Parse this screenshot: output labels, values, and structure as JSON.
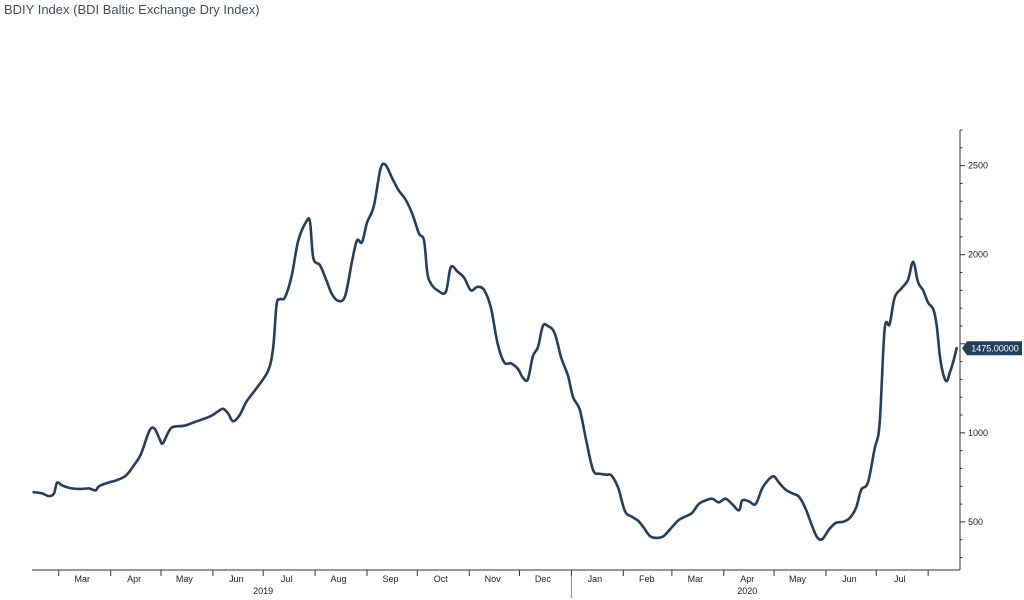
{
  "title": "BDIY Index (BDI Baltic Exchange Dry Index)",
  "colors": {
    "line": "#243f5e",
    "axis": "#333333",
    "label_bg": "#243f5e"
  },
  "chart_data": {
    "type": "line",
    "title": "BDIY Index (BDI Baltic Exchange Dry Index)",
    "xlabel": "",
    "ylabel": "",
    "xlim": [
      "2019-02-13",
      "2020-08-20"
    ],
    "ylim": [
      230,
      2700
    ],
    "y_ticks": [
      500,
      1000,
      1500,
      2000,
      2500
    ],
    "y_tick_labels": [
      "500",
      "1000",
      "",
      "2000",
      "2500"
    ],
    "y_axis_side": "right",
    "grid": false,
    "x_month_ticks": [
      {
        "date": "2019-03-15",
        "label": "Mar"
      },
      {
        "date": "2019-04-15",
        "label": "Apr"
      },
      {
        "date": "2019-05-15",
        "label": "May"
      },
      {
        "date": "2019-06-15",
        "label": "Jun"
      },
      {
        "date": "2019-07-15",
        "label": "Jul"
      },
      {
        "date": "2019-08-15",
        "label": "Aug"
      },
      {
        "date": "2019-09-15",
        "label": "Sep"
      },
      {
        "date": "2019-10-15",
        "label": "Oct"
      },
      {
        "date": "2019-11-15",
        "label": "Nov"
      },
      {
        "date": "2019-12-15",
        "label": "Dec"
      },
      {
        "date": "2020-01-15",
        "label": "Jan"
      },
      {
        "date": "2020-02-15",
        "label": "Feb"
      },
      {
        "date": "2020-03-15",
        "label": "Mar"
      },
      {
        "date": "2020-04-15",
        "label": "Apr"
      },
      {
        "date": "2020-05-15",
        "label": "May"
      },
      {
        "date": "2020-06-15",
        "label": "Jun"
      },
      {
        "date": "2020-07-15",
        "label": "Jul"
      }
    ],
    "x_years": [
      {
        "date": "2019-07-01",
        "label": "2019"
      },
      {
        "date": "2020-04-15",
        "label": "2020"
      }
    ],
    "year_separator": "2020-01-01",
    "last_value_label": "1475.00000",
    "last_value": 1475,
    "series": [
      {
        "values": [
          [
            "2019-02-14",
            667
          ],
          [
            "2019-02-19",
            660
          ],
          [
            "2019-02-23",
            645
          ],
          [
            "2019-02-26",
            658
          ],
          [
            "2019-02-28",
            720
          ],
          [
            "2019-03-03",
            705
          ],
          [
            "2019-03-08",
            690
          ],
          [
            "2019-03-14",
            685
          ],
          [
            "2019-03-19",
            688
          ],
          [
            "2019-03-23",
            677
          ],
          [
            "2019-03-25",
            700
          ],
          [
            "2019-03-31",
            722
          ],
          [
            "2019-04-04",
            732
          ],
          [
            "2019-04-10",
            760
          ],
          [
            "2019-04-15",
            820
          ],
          [
            "2019-04-19",
            880
          ],
          [
            "2019-04-24",
            1010
          ],
          [
            "2019-04-27",
            1025
          ],
          [
            "2019-04-30",
            970
          ],
          [
            "2019-05-02",
            940
          ],
          [
            "2019-05-06",
            1015
          ],
          [
            "2019-05-09",
            1035
          ],
          [
            "2019-05-15",
            1040
          ],
          [
            "2019-05-21",
            1060
          ],
          [
            "2019-05-27",
            1080
          ],
          [
            "2019-05-31",
            1095
          ],
          [
            "2019-06-04",
            1120
          ],
          [
            "2019-06-07",
            1135
          ],
          [
            "2019-06-10",
            1110
          ],
          [
            "2019-06-13",
            1065
          ],
          [
            "2019-06-17",
            1100
          ],
          [
            "2019-06-21",
            1175
          ],
          [
            "2019-06-27",
            1250
          ],
          [
            "2019-07-04",
            1350
          ],
          [
            "2019-07-07",
            1480
          ],
          [
            "2019-07-09",
            1720
          ],
          [
            "2019-07-11",
            1750
          ],
          [
            "2019-07-14",
            1760
          ],
          [
            "2019-07-18",
            1880
          ],
          [
            "2019-07-22",
            2080
          ],
          [
            "2019-07-27",
            2190
          ],
          [
            "2019-07-29",
            2180
          ],
          [
            "2019-07-31",
            1980
          ],
          [
            "2019-08-04",
            1940
          ],
          [
            "2019-08-08",
            1850
          ],
          [
            "2019-08-11",
            1780
          ],
          [
            "2019-08-15",
            1740
          ],
          [
            "2019-08-19",
            1770
          ],
          [
            "2019-08-23",
            1960
          ],
          [
            "2019-08-26",
            2080
          ],
          [
            "2019-08-29",
            2070
          ],
          [
            "2019-09-01",
            2180
          ],
          [
            "2019-09-05",
            2270
          ],
          [
            "2019-09-09",
            2480
          ],
          [
            "2019-09-12",
            2505
          ],
          [
            "2019-09-16",
            2430
          ],
          [
            "2019-09-20",
            2360
          ],
          [
            "2019-09-24",
            2310
          ],
          [
            "2019-09-28",
            2230
          ],
          [
            "2019-10-02",
            2120
          ],
          [
            "2019-10-05",
            2080
          ],
          [
            "2019-10-07",
            1900
          ],
          [
            "2019-10-09",
            1840
          ],
          [
            "2019-10-13",
            1800
          ],
          [
            "2019-10-18",
            1790
          ],
          [
            "2019-10-21",
            1930
          ],
          [
            "2019-10-25",
            1905
          ],
          [
            "2019-10-29",
            1870
          ],
          [
            "2019-11-02",
            1800
          ],
          [
            "2019-11-06",
            1820
          ],
          [
            "2019-11-10",
            1800
          ],
          [
            "2019-11-14",
            1700
          ],
          [
            "2019-11-18",
            1500
          ],
          [
            "2019-11-22",
            1395
          ],
          [
            "2019-11-26",
            1390
          ],
          [
            "2019-11-30",
            1360
          ],
          [
            "2019-12-03",
            1310
          ],
          [
            "2019-12-06",
            1300
          ],
          [
            "2019-12-09",
            1430
          ],
          [
            "2019-12-12",
            1480
          ],
          [
            "2019-12-15",
            1600
          ],
          [
            "2019-12-18",
            1600
          ],
          [
            "2019-12-22",
            1560
          ],
          [
            "2019-12-26",
            1420
          ],
          [
            "2019-12-30",
            1320
          ],
          [
            "2020-01-02",
            1200
          ],
          [
            "2020-01-06",
            1130
          ],
          [
            "2020-01-10",
            950
          ],
          [
            "2020-01-14",
            790
          ],
          [
            "2020-01-18",
            770
          ],
          [
            "2020-01-22",
            765
          ],
          [
            "2020-01-25",
            760
          ],
          [
            "2020-01-29",
            690
          ],
          [
            "2020-02-02",
            560
          ],
          [
            "2020-02-06",
            530
          ],
          [
            "2020-02-10",
            505
          ],
          [
            "2020-02-13",
            470
          ],
          [
            "2020-02-17",
            420
          ],
          [
            "2020-02-21",
            410
          ],
          [
            "2020-02-25",
            420
          ],
          [
            "2020-03-01",
            470
          ],
          [
            "2020-03-05",
            510
          ],
          [
            "2020-03-09",
            530
          ],
          [
            "2020-03-13",
            550
          ],
          [
            "2020-03-17",
            600
          ],
          [
            "2020-03-21",
            620
          ],
          [
            "2020-03-25",
            630
          ],
          [
            "2020-03-29",
            610
          ],
          [
            "2020-04-02",
            630
          ],
          [
            "2020-04-06",
            600
          ],
          [
            "2020-04-10",
            565
          ],
          [
            "2020-04-12",
            620
          ],
          [
            "2020-04-16",
            615
          ],
          [
            "2020-04-20",
            600
          ],
          [
            "2020-04-24",
            690
          ],
          [
            "2020-04-28",
            740
          ],
          [
            "2020-05-01",
            755
          ],
          [
            "2020-05-04",
            720
          ],
          [
            "2020-05-08",
            680
          ],
          [
            "2020-05-12",
            660
          ],
          [
            "2020-05-16",
            640
          ],
          [
            "2020-05-20",
            570
          ],
          [
            "2020-05-24",
            470
          ],
          [
            "2020-05-27",
            410
          ],
          [
            "2020-05-30",
            405
          ],
          [
            "2020-06-03",
            460
          ],
          [
            "2020-06-07",
            495
          ],
          [
            "2020-06-11",
            500
          ],
          [
            "2020-06-15",
            520
          ],
          [
            "2020-06-19",
            580
          ],
          [
            "2020-06-22",
            680
          ],
          [
            "2020-06-26",
            720
          ],
          [
            "2020-06-30",
            910
          ],
          [
            "2020-07-03",
            1050
          ],
          [
            "2020-07-06",
            1580
          ],
          [
            "2020-07-09",
            1610
          ],
          [
            "2020-07-12",
            1760
          ],
          [
            "2020-07-16",
            1810
          ],
          [
            "2020-07-20",
            1860
          ],
          [
            "2020-07-23",
            1960
          ],
          [
            "2020-07-26",
            1845
          ],
          [
            "2020-07-29",
            1800
          ],
          [
            "2020-08-01",
            1730
          ],
          [
            "2020-08-04",
            1695
          ],
          [
            "2020-08-06",
            1610
          ],
          [
            "2020-08-08",
            1430
          ],
          [
            "2020-08-10",
            1330
          ],
          [
            "2020-08-12",
            1290
          ],
          [
            "2020-08-14",
            1340
          ],
          [
            "2020-08-16",
            1400
          ],
          [
            "2020-08-18",
            1475
          ]
        ]
      }
    ]
  }
}
